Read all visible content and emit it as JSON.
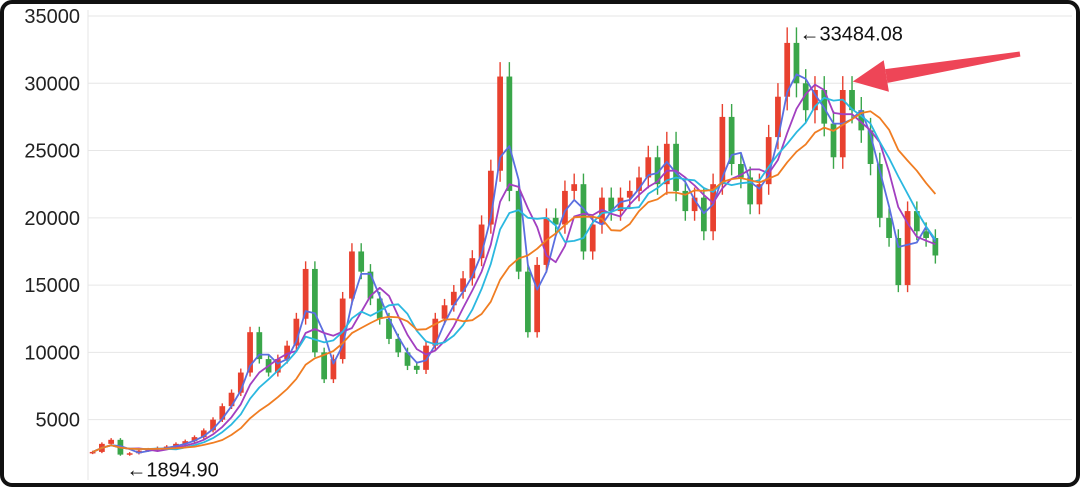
{
  "chart_data": {
    "type": "candlestick",
    "ylim": [
      2000,
      35000
    ],
    "yticks": [
      5000,
      10000,
      15000,
      20000,
      25000,
      30000,
      35000
    ],
    "grid": true,
    "colors": {
      "up": "#e8412f",
      "down": "#3aa64a",
      "ma_cyan": "#2bb8e0",
      "ma_blue": "#5b6fe0",
      "ma_purple": "#a23fc0",
      "ma_orange": "#f07d22",
      "arrow": "#ee4557"
    },
    "annotations": {
      "high_label": "←33484.08",
      "low_label": "←1894.90"
    },
    "high_point": {
      "index": 76,
      "value": 33484.08
    },
    "low_point": {
      "index": 3,
      "value": 1894.9
    },
    "arrow_target": {
      "index": 81,
      "value": 30500
    },
    "closes": [
      2600,
      3200,
      3500,
      2400,
      2500,
      2700,
      2800,
      2900,
      3000,
      3200,
      3400,
      3700,
      4200,
      5000,
      6000,
      7000,
      8500,
      11500,
      9500,
      8500,
      9500,
      10500,
      12500,
      16200,
      10000,
      8000,
      9500,
      14000,
      17500,
      16000,
      14000,
      12500,
      11000,
      10000,
      9000,
      8700,
      10500,
      12500,
      13500,
      14500,
      15500,
      17000,
      19500,
      23500,
      30500,
      22000,
      16000,
      11500,
      16500,
      20000,
      19500,
      22000,
      22500,
      17500,
      19500,
      21500,
      20500,
      21500,
      22000,
      23000,
      24500,
      22500,
      25500,
      22000,
      20500,
      21500,
      19000,
      22500,
      27500,
      24000,
      23000,
      21000,
      22500,
      26000,
      29000,
      33000,
      30000,
      28000,
      29500,
      27000,
      24500,
      29500,
      28000,
      26500,
      24000,
      20000,
      18500,
      15000,
      20500,
      19000,
      18500,
      17200
    ]
  }
}
